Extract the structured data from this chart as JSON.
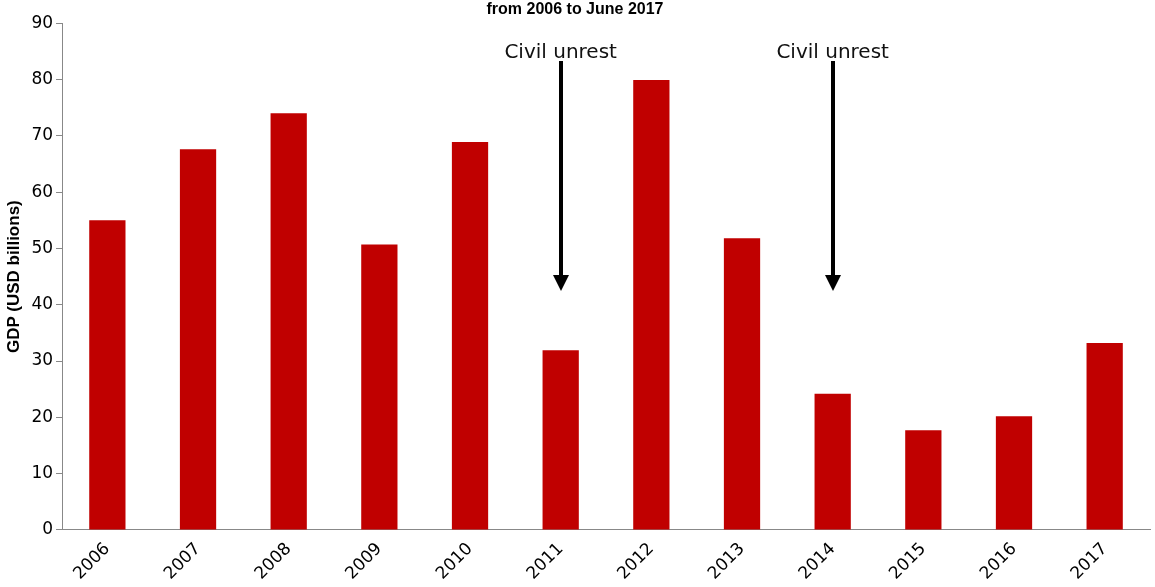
{
  "chart_data": {
    "type": "bar",
    "title": "from 2006 to June 2017",
    "ylabel": "GDP (USD billions)",
    "categories": [
      "2006",
      "2007",
      "2008",
      "2009",
      "2010",
      "2011",
      "2012",
      "2013",
      "2014",
      "2015",
      "2016",
      "2017"
    ],
    "values": [
      55.0,
      67.6,
      74.0,
      50.7,
      68.9,
      31.9,
      79.9,
      51.8,
      24.2,
      17.7,
      20.2,
      33.2
    ],
    "color": "#c00000",
    "ylim": [
      0,
      90
    ],
    "yticks": [
      0,
      10,
      20,
      30,
      40,
      50,
      60,
      70,
      80,
      90
    ],
    "grid": false,
    "legend": false,
    "annotations": [
      "Civil unrest",
      "Civil unrest"
    ]
  }
}
